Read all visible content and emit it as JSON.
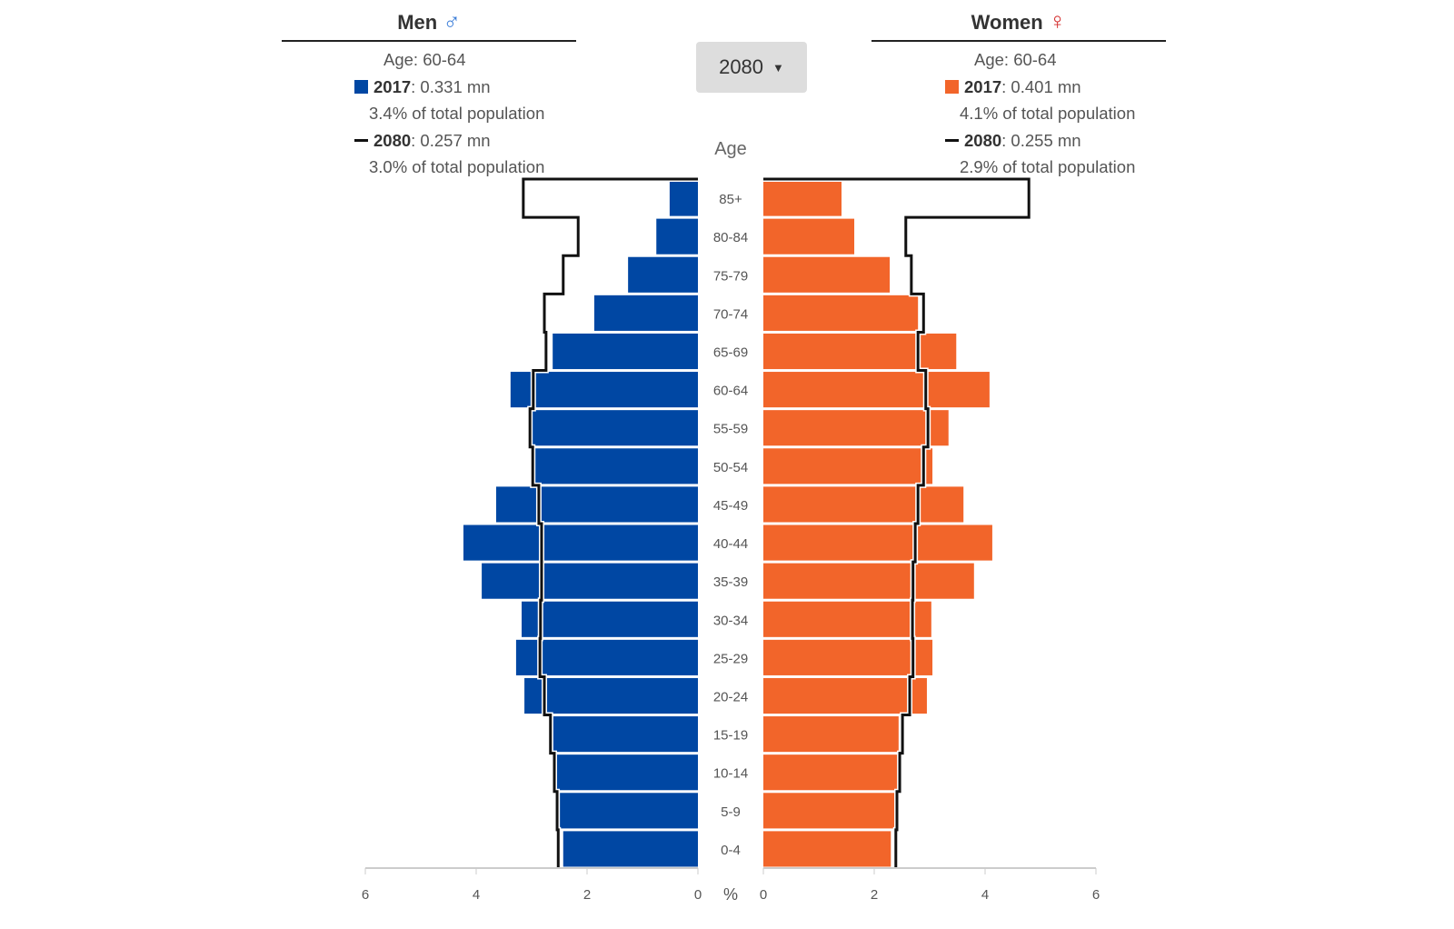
{
  "men": {
    "title": "Men",
    "icon": "male-symbol-icon",
    "age_line": "Age: 60-64",
    "y1_label": "2017",
    "y1_value": ": 0.331 mn",
    "y1_pct": "3.4% of total population",
    "y2_label": "2080",
    "y2_value": ": 0.257 mn",
    "y2_pct": "3.0% of total population"
  },
  "women": {
    "title": "Women",
    "icon": "female-symbol-icon",
    "age_line": "Age: 60-64",
    "y1_label": "2017",
    "y1_value": ": 0.401 mn",
    "y1_pct": "4.1% of total population",
    "y2_label": "2080",
    "y2_value": ": 0.255 mn",
    "y2_pct": "2.9% of total population"
  },
  "dropdown": {
    "selected": "2080"
  },
  "colors": {
    "men": "#0047a3",
    "women": "#f2652a",
    "line": "#111111"
  },
  "chart_data": {
    "type": "bar",
    "subtype": "population-pyramid",
    "ylabel": "Age",
    "xlabel": "%",
    "xlim": [
      0,
      6
    ],
    "xticks": [
      0,
      2,
      4,
      6
    ],
    "categories": [
      "85+",
      "80-84",
      "75-79",
      "70-74",
      "65-69",
      "60-64",
      "55-59",
      "50-54",
      "45-49",
      "40-44",
      "35-39",
      "30-34",
      "25-29",
      "20-24",
      "15-19",
      "10-14",
      "5-9",
      "0-4"
    ],
    "series": [
      {
        "name": "Men 2017",
        "values": [
          0.51,
          0.75,
          1.26,
          1.87,
          2.62,
          3.38,
          3.0,
          2.97,
          3.64,
          4.23,
          3.9,
          3.18,
          3.28,
          3.13,
          2.61,
          2.57,
          2.49,
          2.43
        ]
      },
      {
        "name": "Men 2080",
        "values": [
          3.15,
          2.16,
          2.43,
          2.77,
          2.74,
          2.97,
          3.03,
          2.98,
          2.87,
          2.82,
          2.82,
          2.84,
          2.85,
          2.77,
          2.66,
          2.59,
          2.54,
          2.52
        ]
      },
      {
        "name": "Women 2017",
        "values": [
          1.41,
          1.64,
          2.28,
          2.79,
          3.48,
          4.08,
          3.34,
          3.05,
          3.61,
          4.13,
          3.8,
          3.03,
          3.05,
          2.95,
          2.44,
          2.43,
          2.38,
          2.3
        ]
      },
      {
        "name": "Women 2080",
        "values": [
          4.79,
          2.57,
          2.67,
          2.89,
          2.79,
          2.93,
          2.97,
          2.89,
          2.79,
          2.74,
          2.7,
          2.69,
          2.7,
          2.64,
          2.51,
          2.46,
          2.41,
          2.39
        ]
      }
    ]
  }
}
